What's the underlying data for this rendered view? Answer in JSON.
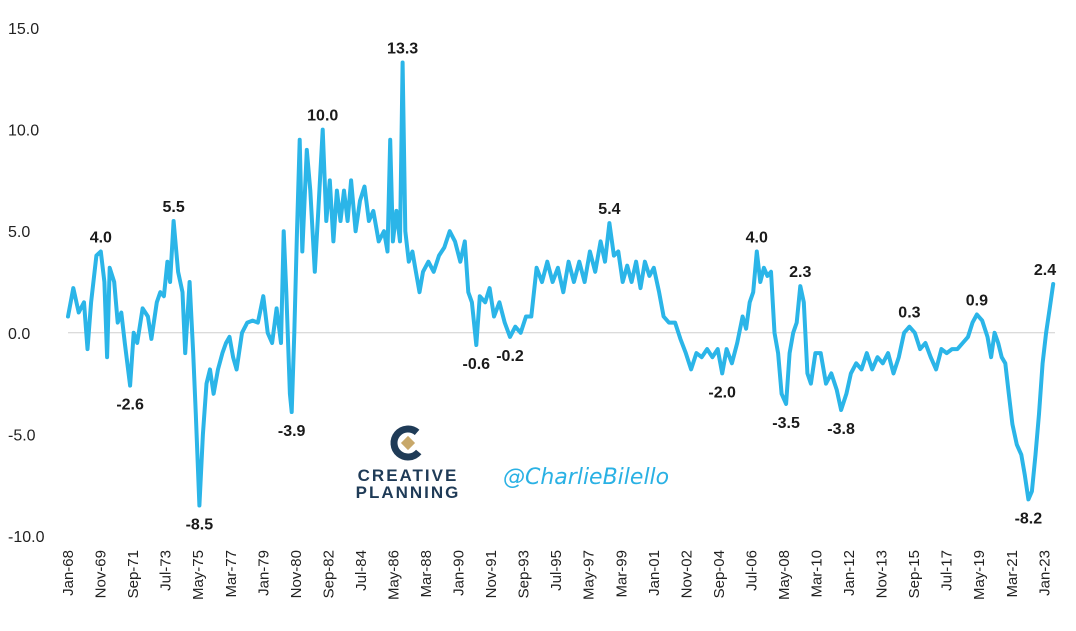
{
  "colors": {
    "line": "#2bb5e8",
    "zero_line": "#cfcfcf",
    "brand_navy": "#1f3b57",
    "brand_gold": "#c8a86a",
    "handle": "#2ab1e4"
  },
  "watermark": {
    "brand_line1": "CREATIVE",
    "brand_line2": "PLANNING",
    "handle": "@CharlieBilello",
    "logo_icon": "creative-planning-logo"
  },
  "chart_data": {
    "type": "line",
    "title": "",
    "xlabel": "",
    "ylabel": "",
    "ylim": [
      -10,
      15
    ],
    "yticks": [
      15.0,
      10.0,
      5.0,
      0.0,
      -5.0,
      -10.0
    ],
    "ytick_labels": [
      "15.0",
      "10.0",
      "5.0",
      "0.0",
      "-5.0",
      "-10.0"
    ],
    "grid": false,
    "xlim": [
      1968.0,
      2023.6
    ],
    "x_ticks": [
      {
        "label": "Jan-68",
        "x": 1968.0
      },
      {
        "label": "Nov-69",
        "x": 1969.83
      },
      {
        "label": "Sep-71",
        "x": 1971.67
      },
      {
        "label": "Jul-73",
        "x": 1973.5
      },
      {
        "label": "May-75",
        "x": 1975.33
      },
      {
        "label": "Mar-77",
        "x": 1977.17
      },
      {
        "label": "Jan-79",
        "x": 1979.0
      },
      {
        "label": "Nov-80",
        "x": 1980.83
      },
      {
        "label": "Sep-82",
        "x": 1982.67
      },
      {
        "label": "Jul-84",
        "x": 1984.5
      },
      {
        "label": "May-86",
        "x": 1986.33
      },
      {
        "label": "Mar-88",
        "x": 1988.17
      },
      {
        "label": "Jan-90",
        "x": 1990.0
      },
      {
        "label": "Nov-91",
        "x": 1991.83
      },
      {
        "label": "Sep-93",
        "x": 1993.67
      },
      {
        "label": "Jul-95",
        "x": 1995.5
      },
      {
        "label": "May-97",
        "x": 1997.33
      },
      {
        "label": "Mar-99",
        "x": 1999.17
      },
      {
        "label": "Jan-01",
        "x": 2001.0
      },
      {
        "label": "Nov-02",
        "x": 2002.83
      },
      {
        "label": "Sep-04",
        "x": 2004.67
      },
      {
        "label": "Jul-06",
        "x": 2006.5
      },
      {
        "label": "May-08",
        "x": 2008.33
      },
      {
        "label": "Mar-10",
        "x": 2010.17
      },
      {
        "label": "Jan-12",
        "x": 2012.0
      },
      {
        "label": "Nov-13",
        "x": 2013.83
      },
      {
        "label": "Sep-15",
        "x": 2015.67
      },
      {
        "label": "Jul-17",
        "x": 2017.5
      },
      {
        "label": "May-19",
        "x": 2019.33
      },
      {
        "label": "Mar-21",
        "x": 2021.17
      },
      {
        "label": "Jan-23",
        "x": 2023.0
      }
    ],
    "series": [
      {
        "points": [
          [
            1968.0,
            0.8
          ],
          [
            1968.3,
            2.2
          ],
          [
            1968.6,
            1.0
          ],
          [
            1968.9,
            1.5
          ],
          [
            1969.1,
            -0.8
          ],
          [
            1969.3,
            1.5
          ],
          [
            1969.6,
            3.8
          ],
          [
            1969.85,
            4.0
          ],
          [
            1970.05,
            2.5
          ],
          [
            1970.2,
            -1.2
          ],
          [
            1970.35,
            3.2
          ],
          [
            1970.6,
            2.5
          ],
          [
            1970.8,
            0.5
          ],
          [
            1971.0,
            1.0
          ],
          [
            1971.2,
            -0.5
          ],
          [
            1971.5,
            -2.6
          ],
          [
            1971.7,
            0.0
          ],
          [
            1971.9,
            -0.5
          ],
          [
            1972.2,
            1.2
          ],
          [
            1972.5,
            0.8
          ],
          [
            1972.7,
            -0.3
          ],
          [
            1973.0,
            1.5
          ],
          [
            1973.2,
            2.0
          ],
          [
            1973.4,
            1.8
          ],
          [
            1973.6,
            3.5
          ],
          [
            1973.75,
            2.5
          ],
          [
            1973.95,
            5.5
          ],
          [
            1974.2,
            3.0
          ],
          [
            1974.45,
            2.0
          ],
          [
            1974.6,
            -1.0
          ],
          [
            1974.85,
            2.5
          ],
          [
            1975.05,
            -1.0
          ],
          [
            1975.2,
            -4.0
          ],
          [
            1975.4,
            -8.5
          ],
          [
            1975.6,
            -5.0
          ],
          [
            1975.8,
            -2.5
          ],
          [
            1976.0,
            -1.8
          ],
          [
            1976.2,
            -3.0
          ],
          [
            1976.45,
            -1.8
          ],
          [
            1976.7,
            -1.0
          ],
          [
            1976.9,
            -0.5
          ],
          [
            1977.1,
            -0.2
          ],
          [
            1977.3,
            -1.2
          ],
          [
            1977.5,
            -1.8
          ],
          [
            1977.8,
            0.0
          ],
          [
            1978.1,
            0.5
          ],
          [
            1978.4,
            0.6
          ],
          [
            1978.7,
            0.5
          ],
          [
            1979.0,
            1.8
          ],
          [
            1979.25,
            0.0
          ],
          [
            1979.5,
            -0.5
          ],
          [
            1979.75,
            1.2
          ],
          [
            1980.0,
            -0.5
          ],
          [
            1980.15,
            5.0
          ],
          [
            1980.3,
            2.0
          ],
          [
            1980.5,
            -3.0
          ],
          [
            1980.6,
            -3.9
          ],
          [
            1980.75,
            0.0
          ],
          [
            1980.9,
            5.0
          ],
          [
            1981.05,
            9.5
          ],
          [
            1981.2,
            4.0
          ],
          [
            1981.45,
            9.0
          ],
          [
            1981.65,
            7.0
          ],
          [
            1981.9,
            3.0
          ],
          [
            1982.1,
            6.0
          ],
          [
            1982.35,
            10.0
          ],
          [
            1982.55,
            5.5
          ],
          [
            1982.75,
            7.5
          ],
          [
            1982.95,
            4.5
          ],
          [
            1983.15,
            7.0
          ],
          [
            1983.35,
            5.5
          ],
          [
            1983.55,
            7.0
          ],
          [
            1983.75,
            5.5
          ],
          [
            1983.95,
            7.5
          ],
          [
            1984.2,
            5.0
          ],
          [
            1984.45,
            6.5
          ],
          [
            1984.7,
            7.2
          ],
          [
            1984.95,
            5.5
          ],
          [
            1985.2,
            6.0
          ],
          [
            1985.5,
            4.5
          ],
          [
            1985.8,
            5.0
          ],
          [
            1986.0,
            4.0
          ],
          [
            1986.15,
            9.5
          ],
          [
            1986.3,
            4.5
          ],
          [
            1986.5,
            6.0
          ],
          [
            1986.7,
            4.5
          ],
          [
            1986.85,
            13.3
          ],
          [
            1987.0,
            5.0
          ],
          [
            1987.2,
            3.5
          ],
          [
            1987.4,
            4.0
          ],
          [
            1987.6,
            3.0
          ],
          [
            1987.8,
            2.0
          ],
          [
            1988.0,
            3.0
          ],
          [
            1988.3,
            3.5
          ],
          [
            1988.6,
            3.0
          ],
          [
            1988.9,
            3.8
          ],
          [
            1989.2,
            4.2
          ],
          [
            1989.5,
            5.0
          ],
          [
            1989.8,
            4.5
          ],
          [
            1990.1,
            3.5
          ],
          [
            1990.35,
            4.5
          ],
          [
            1990.55,
            2.0
          ],
          [
            1990.75,
            1.5
          ],
          [
            1991.0,
            -0.6
          ],
          [
            1991.2,
            1.8
          ],
          [
            1991.5,
            1.5
          ],
          [
            1991.75,
            2.2
          ],
          [
            1992.0,
            0.8
          ],
          [
            1992.3,
            1.5
          ],
          [
            1992.6,
            0.5
          ],
          [
            1992.9,
            -0.2
          ],
          [
            1993.2,
            0.3
          ],
          [
            1993.5,
            0.0
          ],
          [
            1993.8,
            0.8
          ],
          [
            1994.1,
            0.8
          ],
          [
            1994.4,
            3.2
          ],
          [
            1994.7,
            2.5
          ],
          [
            1995.0,
            3.5
          ],
          [
            1995.3,
            2.5
          ],
          [
            1995.6,
            3.2
          ],
          [
            1995.9,
            2.0
          ],
          [
            1996.2,
            3.5
          ],
          [
            1996.5,
            2.5
          ],
          [
            1996.8,
            3.5
          ],
          [
            1997.1,
            2.5
          ],
          [
            1997.4,
            4.0
          ],
          [
            1997.7,
            3.0
          ],
          [
            1998.0,
            4.5
          ],
          [
            1998.25,
            3.5
          ],
          [
            1998.5,
            5.4
          ],
          [
            1998.75,
            3.8
          ],
          [
            1999.0,
            4.0
          ],
          [
            1999.25,
            2.5
          ],
          [
            1999.5,
            3.3
          ],
          [
            1999.75,
            2.5
          ],
          [
            2000.0,
            3.5
          ],
          [
            2000.25,
            2.2
          ],
          [
            2000.5,
            3.5
          ],
          [
            2000.75,
            2.8
          ],
          [
            2001.0,
            3.2
          ],
          [
            2001.3,
            2.0
          ],
          [
            2001.55,
            0.8
          ],
          [
            2001.85,
            0.5
          ],
          [
            2002.2,
            0.5
          ],
          [
            2002.5,
            -0.3
          ],
          [
            2002.8,
            -1.0
          ],
          [
            2003.1,
            -1.8
          ],
          [
            2003.4,
            -1.0
          ],
          [
            2003.7,
            -1.2
          ],
          [
            2004.0,
            -0.8
          ],
          [
            2004.3,
            -1.2
          ],
          [
            2004.6,
            -0.8
          ],
          [
            2004.85,
            -2.0
          ],
          [
            2005.1,
            -0.8
          ],
          [
            2005.4,
            -1.5
          ],
          [
            2005.7,
            -0.5
          ],
          [
            2006.0,
            0.8
          ],
          [
            2006.2,
            0.2
          ],
          [
            2006.4,
            1.5
          ],
          [
            2006.6,
            2.0
          ],
          [
            2006.8,
            4.0
          ],
          [
            2007.0,
            2.5
          ],
          [
            2007.2,
            3.2
          ],
          [
            2007.4,
            2.8
          ],
          [
            2007.6,
            3.0
          ],
          [
            2007.8,
            0.0
          ],
          [
            2008.0,
            -1.0
          ],
          [
            2008.2,
            -3.0
          ],
          [
            2008.45,
            -3.5
          ],
          [
            2008.65,
            -1.0
          ],
          [
            2008.85,
            0.0
          ],
          [
            2009.05,
            0.5
          ],
          [
            2009.25,
            2.3
          ],
          [
            2009.45,
            1.5
          ],
          [
            2009.65,
            -2.0
          ],
          [
            2009.85,
            -2.5
          ],
          [
            2010.1,
            -1.0
          ],
          [
            2010.4,
            -1.0
          ],
          [
            2010.7,
            -2.5
          ],
          [
            2011.0,
            -2.0
          ],
          [
            2011.3,
            -2.8
          ],
          [
            2011.55,
            -3.8
          ],
          [
            2011.85,
            -3.0
          ],
          [
            2012.1,
            -2.0
          ],
          [
            2012.4,
            -1.5
          ],
          [
            2012.7,
            -1.8
          ],
          [
            2013.0,
            -1.0
          ],
          [
            2013.3,
            -1.8
          ],
          [
            2013.6,
            -1.2
          ],
          [
            2013.9,
            -1.5
          ],
          [
            2014.2,
            -1.0
          ],
          [
            2014.5,
            -2.0
          ],
          [
            2014.8,
            -1.2
          ],
          [
            2015.1,
            0.0
          ],
          [
            2015.4,
            0.3
          ],
          [
            2015.7,
            0.0
          ],
          [
            2016.0,
            -0.8
          ],
          [
            2016.3,
            -0.5
          ],
          [
            2016.6,
            -1.2
          ],
          [
            2016.9,
            -1.8
          ],
          [
            2017.2,
            -0.8
          ],
          [
            2017.5,
            -1.0
          ],
          [
            2017.8,
            -0.8
          ],
          [
            2018.1,
            -0.8
          ],
          [
            2018.4,
            -0.5
          ],
          [
            2018.7,
            -0.2
          ],
          [
            2018.95,
            0.5
          ],
          [
            2019.2,
            0.9
          ],
          [
            2019.5,
            0.6
          ],
          [
            2019.8,
            -0.2
          ],
          [
            2020.0,
            -1.2
          ],
          [
            2020.2,
            0.0
          ],
          [
            2020.4,
            -0.5
          ],
          [
            2020.6,
            -1.2
          ],
          [
            2020.8,
            -1.5
          ],
          [
            2021.0,
            -3.0
          ],
          [
            2021.2,
            -4.5
          ],
          [
            2021.45,
            -5.5
          ],
          [
            2021.7,
            -6.0
          ],
          [
            2021.9,
            -7.0
          ],
          [
            2022.1,
            -8.2
          ],
          [
            2022.3,
            -7.8
          ],
          [
            2022.5,
            -6.0
          ],
          [
            2022.7,
            -4.0
          ],
          [
            2022.9,
            -1.5
          ],
          [
            2023.1,
            0.0
          ],
          [
            2023.3,
            1.2
          ],
          [
            2023.5,
            2.4
          ]
        ]
      }
    ],
    "annotations": [
      {
        "text": "4.0",
        "x": 1969.85,
        "y": 4.0,
        "pos": "above"
      },
      {
        "text": "-2.6",
        "x": 1971.5,
        "y": -2.6,
        "pos": "below"
      },
      {
        "text": "5.5",
        "x": 1973.95,
        "y": 5.5,
        "pos": "above"
      },
      {
        "text": "-8.5",
        "x": 1975.4,
        "y": -8.5,
        "pos": "below"
      },
      {
        "text": "-3.9",
        "x": 1980.6,
        "y": -3.9,
        "pos": "below"
      },
      {
        "text": "10.0",
        "x": 1982.35,
        "y": 10.0,
        "pos": "above"
      },
      {
        "text": "13.3",
        "x": 1986.85,
        "y": 13.3,
        "pos": "above"
      },
      {
        "text": "-0.6",
        "x": 1991.0,
        "y": -0.6,
        "pos": "below"
      },
      {
        "text": "-0.2",
        "x": 1992.9,
        "y": -0.2,
        "pos": "below"
      },
      {
        "text": "5.4",
        "x": 1998.5,
        "y": 5.4,
        "pos": "above"
      },
      {
        "text": "-2.0",
        "x": 2004.85,
        "y": -2.0,
        "pos": "below"
      },
      {
        "text": "4.0",
        "x": 2006.8,
        "y": 4.0,
        "pos": "above"
      },
      {
        "text": "-3.5",
        "x": 2008.45,
        "y": -3.5,
        "pos": "below"
      },
      {
        "text": "2.3",
        "x": 2009.25,
        "y": 2.3,
        "pos": "above"
      },
      {
        "text": "-3.8",
        "x": 2011.55,
        "y": -3.8,
        "pos": "below"
      },
      {
        "text": "0.3",
        "x": 2015.4,
        "y": 0.3,
        "pos": "above"
      },
      {
        "text": "0.9",
        "x": 2019.2,
        "y": 0.9,
        "pos": "above"
      },
      {
        "text": "-8.2",
        "x": 2022.1,
        "y": -8.2,
        "pos": "below"
      },
      {
        "text": "2.4",
        "x": 2023.5,
        "y": 2.4,
        "pos": "above"
      }
    ]
  }
}
